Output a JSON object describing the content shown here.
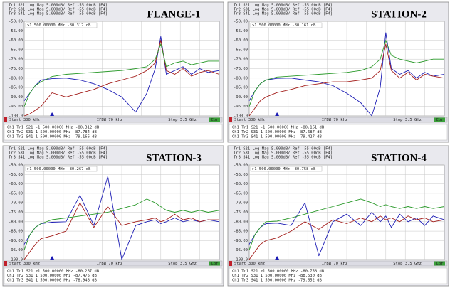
{
  "chart_data": [
    {
      "type": "line",
      "title": "FLANGE-1",
      "trace_header": [
        "Tr1 S21 Log Mag 5.000dB/ Ref -55.00dB [F4]",
        "Tr2 S31 Log Mag 5.000dB/ Ref -55.00dB [F4]",
        "Tr3 S41 Log Mag 5.000dB/ Ref -55.00dB [F4]"
      ],
      "marker_readout": ">1  500.00000 MHz -80.312 dB",
      "footer": {
        "start": "Start 300 kHz",
        "ifbw": "IFBW 70 kHz",
        "stop": "Stop 3.5 GHz",
        "cor": "Cor"
      },
      "marker_table": [
        "Ch1 Tr1 S21  >1  500.00000 MHz -80.312 dB",
        "Ch1 Tr2 S31   1  500.00000 MHz -87.784 dB",
        "Ch1 Tr3 S41   1  500.00000 MHz -79.166 dB"
      ],
      "x": [
        0.0003,
        0.1,
        0.2,
        0.3,
        0.5,
        0.75,
        1.0,
        1.25,
        1.5,
        1.75,
        2.0,
        2.2,
        2.35,
        2.45,
        2.55,
        2.7,
        2.85,
        3.0,
        3.15,
        3.3,
        3.5
      ],
      "xlim": [
        0.0003,
        3.5
      ],
      "ylim": [
        -100,
        -50
      ],
      "yticks": [
        {
          "value": -50,
          "label": "-50.00"
        },
        {
          "value": -55,
          "label": "-55.00"
        },
        {
          "value": -60,
          "label": "-60.00"
        },
        {
          "value": -65,
          "label": "-65.00"
        },
        {
          "value": -70,
          "label": "-70.00"
        },
        {
          "value": -75,
          "label": "-75.00"
        },
        {
          "value": -80,
          "label": "-80.00"
        },
        {
          "value": -85,
          "label": "-85.00"
        },
        {
          "value": -90,
          "label": "-90.00"
        },
        {
          "value": -95,
          "label": "-95.00"
        },
        {
          "value": -100,
          "label": "-100.0"
        }
      ],
      "grid": true,
      "series": [
        {
          "color": "#1c1cb4",
          "values": [
            -92,
            -88,
            -84,
            -81,
            -80.312,
            -80,
            -81,
            -83,
            -86,
            -90,
            -98,
            -88,
            -75,
            -58,
            -78,
            -76,
            -74,
            -78,
            -75,
            -77,
            -76
          ]
        },
        {
          "color": "#a31d1a",
          "values": [
            -100,
            -99,
            -97,
            -95,
            -87.784,
            -90,
            -88,
            -86,
            -83,
            -81,
            -79,
            -76,
            -72,
            -60,
            -76,
            -78,
            -75,
            -79,
            -77,
            -76,
            -78
          ]
        },
        {
          "color": "#2b9a2b",
          "values": [
            -95,
            -88,
            -84,
            -82,
            -79.166,
            -78,
            -77.5,
            -77,
            -76.5,
            -76,
            -75,
            -74,
            -70,
            -62,
            -74,
            -72,
            -71,
            -73,
            -72,
            -71,
            -71
          ]
        }
      ]
    },
    {
      "type": "line",
      "title": "STATION-2",
      "trace_header": [
        "Tr1 S21 Log Mag 5.000dB/ Ref -55.00dB [F4]",
        "Tr2 S31 Log Mag 5.000dB/ Ref -55.00dB [F4]",
        "Tr3 S41 Log Mag 5.000dB/ Ref -55.00dB [F4]"
      ],
      "marker_readout": ">1  500.00000 MHz -80.161 dB",
      "footer": {
        "start": "Start 300 kHz",
        "ifbw": "IFBW 70 kHz",
        "stop": "Stop 3.5 GHz",
        "cor": "Cor"
      },
      "marker_table": [
        "Ch1 Tr1 S21  >1  500.00000 MHz -80.161 dB",
        "Ch1 Tr2 S31   1  500.00000 MHz -87.687 dB",
        "Ch1 Tr3 S41   1  500.00000 MHz -79.427 dB"
      ],
      "x": [
        0.0003,
        0.1,
        0.2,
        0.3,
        0.5,
        0.75,
        1.0,
        1.25,
        1.5,
        1.75,
        2.0,
        2.2,
        2.35,
        2.45,
        2.55,
        2.7,
        2.85,
        3.0,
        3.15,
        3.3,
        3.5
      ],
      "xlim": [
        0.0003,
        3.5
      ],
      "ylim": [
        -100,
        -50
      ],
      "yticks": [
        {
          "value": -50,
          "label": "-50.00"
        },
        {
          "value": -55,
          "label": "-55.00"
        },
        {
          "value": -60,
          "label": "-60.00"
        },
        {
          "value": -65,
          "label": "-65.00"
        },
        {
          "value": -70,
          "label": "-70.00"
        },
        {
          "value": -75,
          "label": "-75.00"
        },
        {
          "value": -80,
          "label": "-80.00"
        },
        {
          "value": -85,
          "label": "-85.00"
        },
        {
          "value": -90,
          "label": "-90.00"
        },
        {
          "value": -95,
          "label": "-95.00"
        },
        {
          "value": -100,
          "label": "-100.0"
        }
      ],
      "grid": true,
      "series": [
        {
          "color": "#1c1cb4",
          "values": [
            -92,
            -87,
            -83,
            -81,
            -80.161,
            -80,
            -81,
            -82,
            -84,
            -88,
            -93,
            -100,
            -85,
            -56,
            -75,
            -78,
            -76,
            -80,
            -77,
            -79,
            -78
          ]
        },
        {
          "color": "#a31d1a",
          "values": [
            -100,
            -96,
            -92,
            -90,
            -87.687,
            -86,
            -84,
            -83,
            -82,
            -82,
            -81,
            -80,
            -76,
            -62,
            -76,
            -80,
            -77,
            -81,
            -78,
            -79,
            -80
          ]
        },
        {
          "color": "#2b9a2b",
          "values": [
            -95,
            -87,
            -83,
            -81,
            -79.427,
            -79,
            -78.5,
            -78,
            -77.5,
            -77,
            -76,
            -74,
            -70,
            -60,
            -68,
            -70,
            -71,
            -72,
            -71,
            -70,
            -70
          ]
        }
      ]
    },
    {
      "type": "line",
      "title": "STATION-3",
      "trace_header": [
        "Tr1 S21 Log Mag 5.000dB/ Ref -55.00dB [F4]",
        "Tr2 S31 Log Mag 5.000dB/ Ref -55.00dB [F4]",
        "Tr3 S41 Log Mag 5.000dB/ Ref -55.00dB [F4]"
      ],
      "marker_readout": ">1  500.00000 MHz -80.267 dB",
      "footer": {
        "start": "Start 300 kHz",
        "ifbw": "IFBW 70 kHz",
        "stop": "Stop 3.5 GHz",
        "cor": "Cor"
      },
      "marker_table": [
        "Ch1 Tr1 S21  >1  500.00000 MHz -80.267 dB",
        "Ch1 Tr2 S31   1  500.00000 MHz -87.475 dB",
        "Ch1 Tr3 S41   1  500.00000 MHz -78.948 dB"
      ],
      "x": [
        0.0003,
        0.1,
        0.2,
        0.3,
        0.5,
        0.75,
        1.0,
        1.25,
        1.5,
        1.75,
        2.0,
        2.2,
        2.35,
        2.45,
        2.55,
        2.7,
        2.85,
        3.0,
        3.15,
        3.3,
        3.5
      ],
      "xlim": [
        0.0003,
        3.5
      ],
      "ylim": [
        -100,
        -50
      ],
      "yticks": [
        {
          "value": -50,
          "label": "-50.00"
        },
        {
          "value": -55,
          "label": "-55.00"
        },
        {
          "value": -60,
          "label": "-60.00"
        },
        {
          "value": -65,
          "label": "-65.00"
        },
        {
          "value": -70,
          "label": "-70.00"
        },
        {
          "value": -75,
          "label": "-75.00"
        },
        {
          "value": -80,
          "label": "-80.00"
        },
        {
          "value": -85,
          "label": "-85.00"
        },
        {
          "value": -90,
          "label": "-90.00"
        },
        {
          "value": -95,
          "label": "-95.00"
        },
        {
          "value": -100,
          "label": "-100.0"
        }
      ],
      "grid": true,
      "series": [
        {
          "color": "#1c1cb4",
          "values": [
            -92,
            -87,
            -83,
            -81,
            -80.267,
            -80,
            -66,
            -82,
            -56,
            -100,
            -82,
            -80,
            -79,
            -81,
            -80,
            -78,
            -80,
            -79,
            -80,
            -79,
            -80
          ]
        },
        {
          "color": "#a31d1a",
          "values": [
            -100,
            -96,
            -92,
            -89,
            -87.475,
            -85,
            -70,
            -83,
            -72,
            -82,
            -80,
            -79,
            -78,
            -80,
            -79,
            -76,
            -79,
            -78,
            -80,
            -79,
            -79
          ]
        },
        {
          "color": "#2b9a2b",
          "values": [
            -95,
            -87,
            -83,
            -81,
            -78.948,
            -78,
            -77,
            -76,
            -75,
            -73,
            -71,
            -68,
            -70,
            -72,
            -74,
            -75,
            -74,
            -75,
            -74,
            -75,
            -74
          ]
        }
      ]
    },
    {
      "type": "line",
      "title": "STATION-4",
      "trace_header": [
        "Tr1 S21 Log Mag 5.000dB/ Ref -55.00dB [F4]",
        "Tr2 S31 Log Mag 5.000dB/ Ref -55.00dB [F4]",
        "Tr3 S41 Log Mag 5.000dB/ Ref -55.00dB [F4]"
      ],
      "marker_readout": ">1  500.00000 MHz -80.758 dB",
      "footer": {
        "start": "Start 300 kHz",
        "ifbw": "IFBW 70 kHz",
        "stop": "Stop 3.5 GHz",
        "cor": "Cor"
      },
      "marker_table": [
        "Ch1 Tr1 S21  >1  500.00000 MHz -80.758 dB",
        "Ch1 Tr2 S31   1  500.00000 MHz -88.530 dB",
        "Ch1 Tr3 S41   1  500.00000 MHz -79.652 dB"
      ],
      "x": [
        0.0003,
        0.1,
        0.2,
        0.3,
        0.5,
        0.75,
        1.0,
        1.25,
        1.5,
        1.75,
        2.0,
        2.2,
        2.35,
        2.45,
        2.55,
        2.7,
        2.85,
        3.0,
        3.15,
        3.3,
        3.5
      ],
      "xlim": [
        0.0003,
        3.5
      ],
      "ylim": [
        -100,
        -50
      ],
      "yticks": [
        {
          "value": -50,
          "label": "-50.00"
        },
        {
          "value": -55,
          "label": "-55.00"
        },
        {
          "value": -60,
          "label": "-60.00"
        },
        {
          "value": -65,
          "label": "-65.00"
        },
        {
          "value": -70,
          "label": "-70.00"
        },
        {
          "value": -75,
          "label": "-75.00"
        },
        {
          "value": -80,
          "label": "-80.00"
        },
        {
          "value": -85,
          "label": "-85.00"
        },
        {
          "value": -90,
          "label": "-90.00"
        },
        {
          "value": -95,
          "label": "-95.00"
        },
        {
          "value": -100,
          "label": "-100.0"
        }
      ],
      "grid": true,
      "series": [
        {
          "color": "#1c1cb4",
          "values": [
            -92,
            -87,
            -83,
            -81,
            -80.758,
            -82,
            -70,
            -98,
            -80,
            -76,
            -82,
            -75,
            -80,
            -77,
            -83,
            -76,
            -80,
            -78,
            -82,
            -77,
            -79
          ]
        },
        {
          "color": "#a31d1a",
          "values": [
            -100,
            -96,
            -92,
            -90,
            -88.53,
            -85,
            -80,
            -84,
            -79,
            -81,
            -78,
            -80,
            -77,
            -79,
            -78,
            -80,
            -77,
            -79,
            -78,
            -80,
            -79
          ]
        },
        {
          "color": "#2b9a2b",
          "values": [
            -95,
            -87,
            -83,
            -80,
            -79.652,
            -78,
            -76,
            -74,
            -72,
            -70,
            -68,
            -70,
            -72,
            -71,
            -72,
            -73,
            -72,
            -73,
            -72,
            -73,
            -72
          ]
        }
      ]
    }
  ]
}
